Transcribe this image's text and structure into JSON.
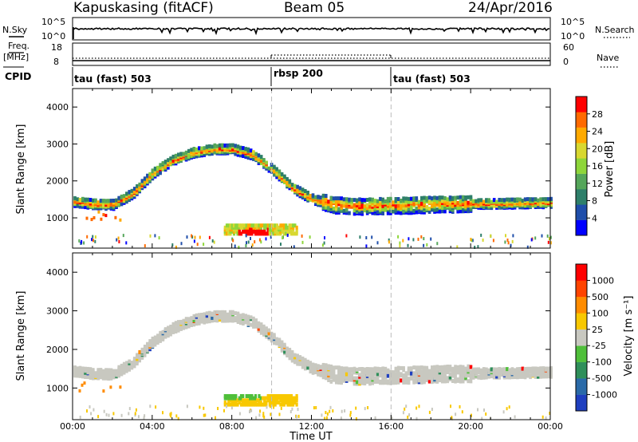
{
  "header": {
    "station_title": "Kapuskasing (fitACF)",
    "beam_title": "Beam 05",
    "date_title": "24/Apr/2016"
  },
  "panels": {
    "nsky": {
      "left_label": "N.Sky",
      "right_label": "N.Search",
      "left_ticks": [
        "10^5",
        "10^0"
      ],
      "right_ticks": [
        "10^5",
        "10^0"
      ]
    },
    "freq": {
      "left_label_line1": "Freq.",
      "left_label_line2": "[MHz]",
      "right_label": "Nave",
      "left_ticks": [
        "18",
        "8"
      ],
      "right_ticks": [
        "60",
        "0"
      ]
    },
    "cpid": {
      "label": "CPID",
      "segments": [
        {
          "label": "tau (fast) 503",
          "start": 0,
          "end": 10
        },
        {
          "label": "rbsp 200",
          "start": 10,
          "end": 16
        },
        {
          "label": "tau (fast) 503",
          "start": 16,
          "end": 24
        }
      ]
    }
  },
  "chart_data": [
    {
      "type": "heatmap",
      "title": "",
      "xlabel": "",
      "ylabel": "Slant Range [km]",
      "xlim": [
        0,
        24
      ],
      "ylim": [
        180,
        4500
      ],
      "yticks": [
        "1000",
        "2000",
        "3000",
        "4000"
      ],
      "colorbar": {
        "label": "Power [dB]",
        "ticks": [
          "28",
          "24",
          "20",
          "16",
          "12",
          "8",
          "4"
        ],
        "colors": [
          "#0000ff",
          "#1f4eaa",
          "#2e7f6a",
          "#55a65a",
          "#8ed63a",
          "#d8d830",
          "#ffaa00",
          "#ff6a00",
          "#ff0000"
        ]
      },
      "echo_band": [
        {
          "t": 0,
          "range": 1430
        },
        {
          "t": 1,
          "range": 1360
        },
        {
          "t": 2,
          "range": 1350
        },
        {
          "t": 3,
          "range": 1650
        },
        {
          "t": 4,
          "range": 2200
        },
        {
          "t": 5,
          "range": 2550
        },
        {
          "t": 6,
          "range": 2750
        },
        {
          "t": 7,
          "range": 2850
        },
        {
          "t": 8,
          "range": 2850
        },
        {
          "t": 9,
          "range": 2700
        },
        {
          "t": 10,
          "range": 2300
        },
        {
          "t": 11,
          "range": 1800
        },
        {
          "t": 12,
          "range": 1500
        },
        {
          "t": 13,
          "range": 1350
        },
        {
          "t": 14,
          "range": 1300
        },
        {
          "t": 16,
          "range": 1320
        },
        {
          "t": 18,
          "range": 1350
        },
        {
          "t": 20,
          "range": 1370
        },
        {
          "t": 22,
          "range": 1380
        },
        {
          "t": 24,
          "range": 1400
        }
      ],
      "near_range_patch": {
        "t_start": 7.6,
        "t_end": 11.2,
        "range_low": 560,
        "range_high": 800
      }
    },
    {
      "type": "heatmap",
      "title": "",
      "xlabel": "Time UT",
      "ylabel": "Slant Range [km]",
      "xlim": [
        0,
        24
      ],
      "ylim": [
        180,
        4500
      ],
      "xticks": [
        "00:00",
        "04:00",
        "08:00",
        "12:00",
        "16:00",
        "20:00",
        "00:00"
      ],
      "yticks": [
        "1000",
        "2000",
        "3000",
        "4000"
      ],
      "colorbar": {
        "label": "Velocity [m s⁻¹]",
        "ticks": [
          "1000",
          "500",
          "100",
          "25",
          "-25",
          "-100",
          "-500",
          "-1000"
        ],
        "colors": [
          "#1f3fbf",
          "#2a6aa8",
          "#2f8f5a",
          "#4fbf3a",
          "#c8c8c0",
          "#f8c800",
          "#ff8c00",
          "#ff4400",
          "#ff0000"
        ]
      },
      "ground_scatter_color": "#c8c8c0",
      "near_range_patch": {
        "t_start": 7.6,
        "t_end": 11.2,
        "range_low": 560,
        "range_high": 800
      }
    }
  ]
}
